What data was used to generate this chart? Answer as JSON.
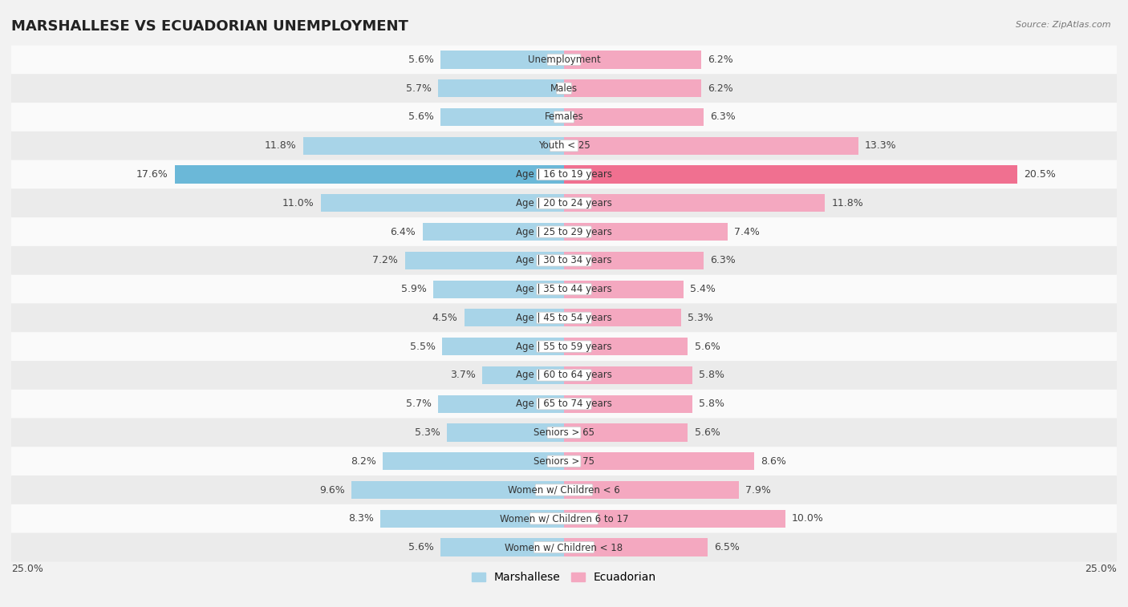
{
  "title": "MARSHALLESE VS ECUADORIAN UNEMPLOYMENT",
  "source": "Source: ZipAtlas.com",
  "categories": [
    "Unemployment",
    "Males",
    "Females",
    "Youth < 25",
    "Age | 16 to 19 years",
    "Age | 20 to 24 years",
    "Age | 25 to 29 years",
    "Age | 30 to 34 years",
    "Age | 35 to 44 years",
    "Age | 45 to 54 years",
    "Age | 55 to 59 years",
    "Age | 60 to 64 years",
    "Age | 65 to 74 years",
    "Seniors > 65",
    "Seniors > 75",
    "Women w/ Children < 6",
    "Women w/ Children 6 to 17",
    "Women w/ Children < 18"
  ],
  "marshallese": [
    5.6,
    5.7,
    5.6,
    11.8,
    17.6,
    11.0,
    6.4,
    7.2,
    5.9,
    4.5,
    5.5,
    3.7,
    5.7,
    5.3,
    8.2,
    9.6,
    8.3,
    5.6
  ],
  "ecuadorian": [
    6.2,
    6.2,
    6.3,
    13.3,
    20.5,
    11.8,
    7.4,
    6.3,
    5.4,
    5.3,
    5.6,
    5.8,
    5.8,
    5.6,
    8.6,
    7.9,
    10.0,
    6.5
  ],
  "marshallese_color": "#A8D4E8",
  "ecuadorian_color": "#F4A8C0",
  "highlight_marshallese_color": "#6BB8D8",
  "highlight_ecuadorian_color": "#F07090",
  "background_color": "#f2f2f2",
  "row_color_light": "#fafafa",
  "row_color_dark": "#ebebeb",
  "xlim": 25.0,
  "legend_marshallese": "Marshallese",
  "legend_ecuadorian": "Ecuadorian",
  "title_fontsize": 13,
  "label_fontsize": 9,
  "category_fontsize": 8.5
}
